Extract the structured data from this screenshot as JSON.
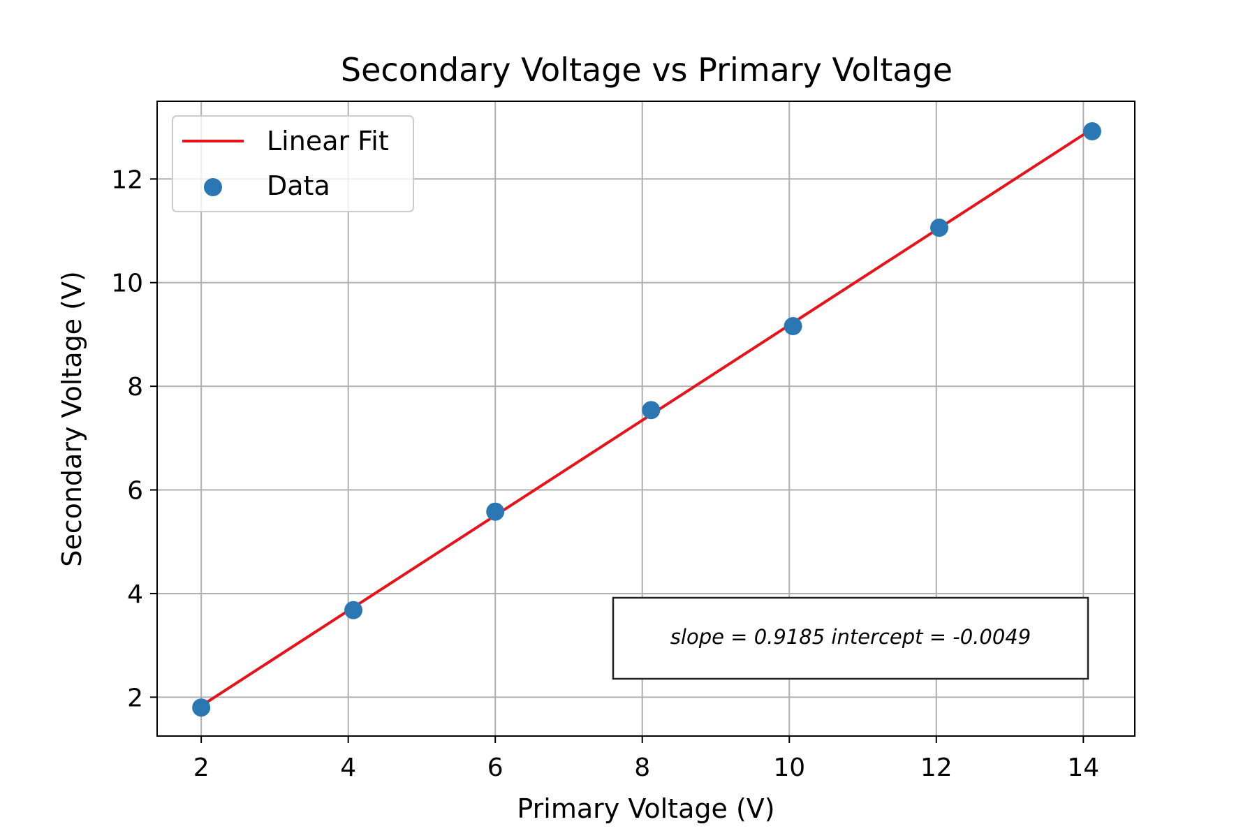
{
  "chart_data": {
    "type": "scatter",
    "title": "Secondary Voltage vs Primary Voltage",
    "xlabel": "Primary Voltage (V)",
    "ylabel": "Secondary Voltage (V)",
    "xlim": [
      1.4,
      14.7
    ],
    "ylim": [
      1.25,
      13.5
    ],
    "xticks": [
      2,
      4,
      6,
      8,
      10,
      12,
      14
    ],
    "yticks": [
      2,
      4,
      6,
      8,
      10,
      12
    ],
    "grid": true,
    "legend": {
      "position": "upper-left",
      "entries": [
        {
          "label": "Linear Fit",
          "marker": "line",
          "color": "#e8121a"
        },
        {
          "label": "Data",
          "marker": "circle",
          "color": "#2a77b3"
        }
      ]
    },
    "series": [
      {
        "name": "Data",
        "kind": "scatter",
        "color": "#2a77b3",
        "x": [
          2.0,
          4.07,
          6.0,
          8.12,
          10.05,
          12.04,
          14.12
        ],
        "y": [
          1.8,
          3.68,
          5.58,
          7.54,
          9.16,
          11.06,
          12.92
        ]
      },
      {
        "name": "Linear Fit",
        "kind": "line",
        "color": "#e8121a",
        "slope": 0.9185,
        "intercept": -0.0049,
        "x_range": [
          2.0,
          14.12
        ]
      }
    ],
    "annotation": {
      "text": "slope = 0.9185 intercept = -0.0049"
    }
  }
}
